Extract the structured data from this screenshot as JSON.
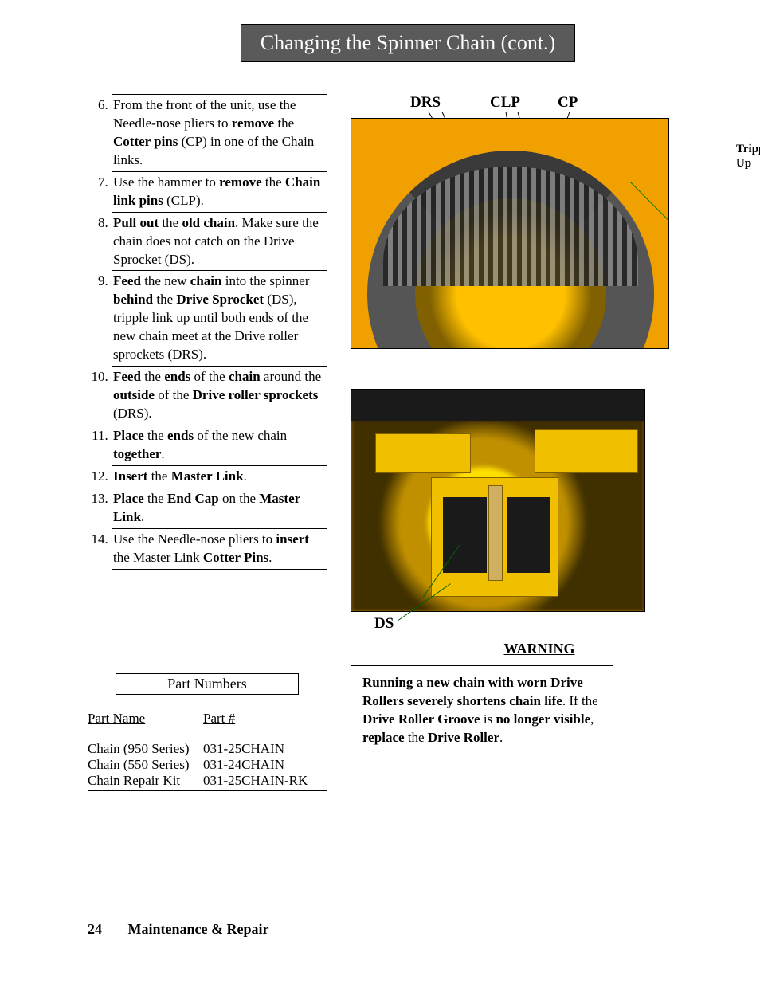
{
  "title": "Changing the Spinner Chain (cont.)",
  "steps": [
    {
      "n": 6,
      "html": "From the front of the unit, use the Needle-nose pliers to <b>remove</b> the <b>Cotter pins</b> (CP) in one of the Chain links."
    },
    {
      "n": 7,
      "html": "Use the hammer to <b>remove</b> the <b>Chain link pins</b> (CLP)."
    },
    {
      "n": 8,
      "html": "<b>Pull out</b> the <b>old chain</b>.  Make sure the chain does not catch on the Drive Sprocket (DS)."
    },
    {
      "n": 9,
      "html": "<b>Feed</b> the new <b>chain</b> into the spinner <b>behind</b> the <b>Drive Sprocket</b> (DS), tripple link up until both ends of the new chain meet at the Drive roller sprockets (DRS)."
    },
    {
      "n": 10,
      "html": "<b>Feed</b> the <b>ends</b> of the <b>chain</b> around the <b>outside</b> of the <b>Drive roller sprockets</b> (DRS)."
    },
    {
      "n": 11,
      "html": "<b>Place</b> the <b>ends</b> of the new chain <b>together</b>."
    },
    {
      "n": 12,
      "html": "<b>Insert</b> the <b>Master Link</b>."
    },
    {
      "n": 13,
      "html": "<b>Place</b> the <b>End Cap</b> on the <b>Master Link</b>."
    },
    {
      "n": 14,
      "html": "Use the Needle-nose pliers to <b>insert</b> the Master Link <b>Cotter Pins</b>."
    }
  ],
  "fig1_callouts": {
    "drs": "DRS",
    "clp": "CLP",
    "cp": "CP"
  },
  "side_note": "Tripple Link Up",
  "fig2_label": "DS",
  "parts": {
    "title": "Part Numbers",
    "head_name": "Part Name",
    "head_num": "Part #",
    "rows": [
      {
        "name": "Chain (950 Series)",
        "num": "031-25CHAIN"
      },
      {
        "name": "Chain (550 Series)",
        "num": "031-24CHAIN"
      },
      {
        "name": "Chain Repair Kit",
        "num": "031-25CHAIN-RK"
      }
    ]
  },
  "warning": {
    "head": "WARNING",
    "html": "<b>Running a new chain with worn Drive Rollers severely shortens chain life</b>.  If the <b>Drive Roller Groove</b> is <b>no longer visible</b>, <b>replace</b> the <b>Drive Roller</b>."
  },
  "footer": {
    "page": "24",
    "section": "Maintenance & Repair"
  },
  "colors": {
    "title_bg": "#5a5a5a",
    "title_fg": "#ffffff",
    "machine_yellow": "#f0c000",
    "chain": "#3a3a3a",
    "callout_green": "#008000"
  }
}
